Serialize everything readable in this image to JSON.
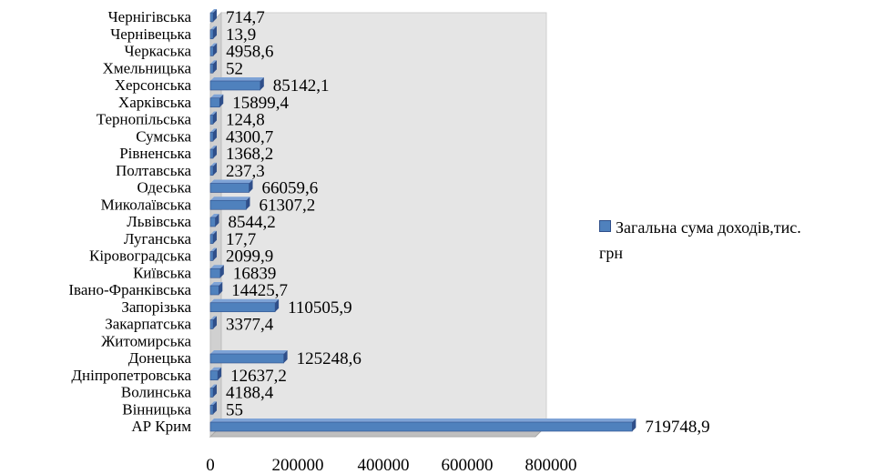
{
  "chart_data": {
    "type": "bar",
    "orientation": "horizontal",
    "style": "3d",
    "categories": [
      "АР Крим",
      "Вінницька",
      "Волинська",
      "Дніпропетровська",
      "Донецька",
      "Житомирська",
      "Закарпатська",
      "Запорізька",
      "Івано-Франківська",
      "Київська",
      "Кіровоградська",
      "Луганська",
      "Львівська",
      "Миколаївська",
      "Одеська",
      "Полтавська",
      "Рівненська",
      "Сумська",
      "Тернопільська",
      "Харківська",
      "Херсонська",
      "Хмельницька",
      "Черкаська",
      "Чернівецька",
      "Чернігівська"
    ],
    "value_labels": [
      "719748,9",
      "55",
      "4188,4",
      "12637,2",
      "125248,6",
      "",
      "3377,4",
      "110505,9",
      "14425,7",
      "16839",
      "2099,9",
      "17,7",
      "8544,2",
      "61307,2",
      "66059,6",
      "237,3",
      "1368,2",
      "4300,7",
      "124,8",
      "15899,4",
      "85142,1",
      "52",
      "4958,6",
      "13,9",
      "714,7"
    ],
    "series": [
      {
        "name": "Загальна сума доходів,тис. грн",
        "values": [
          719748.9,
          55,
          4188.4,
          12637.2,
          125248.6,
          null,
          3377.4,
          110505.9,
          14425.7,
          16839,
          2099.9,
          17.7,
          8544.2,
          61307.2,
          66059.6,
          237.3,
          1368.2,
          4300.7,
          124.8,
          15899.4,
          85142.1,
          52,
          4958.6,
          13.9,
          714.7
        ]
      }
    ],
    "xlim": [
      0,
      800000
    ],
    "xticks": [
      "0",
      "200000",
      "400000",
      "600000",
      "800000"
    ],
    "legend": {
      "position": "right",
      "lines": [
        "Загальна сума доходів,тис.",
        "грн"
      ]
    },
    "colors": {
      "bar": "#4f81bd",
      "bar_dark": "#2f4f8a",
      "bar_top": "#7ea3d6",
      "plot_back": "#e5e5e5",
      "plot_floor": "#bfbfbf"
    }
  }
}
